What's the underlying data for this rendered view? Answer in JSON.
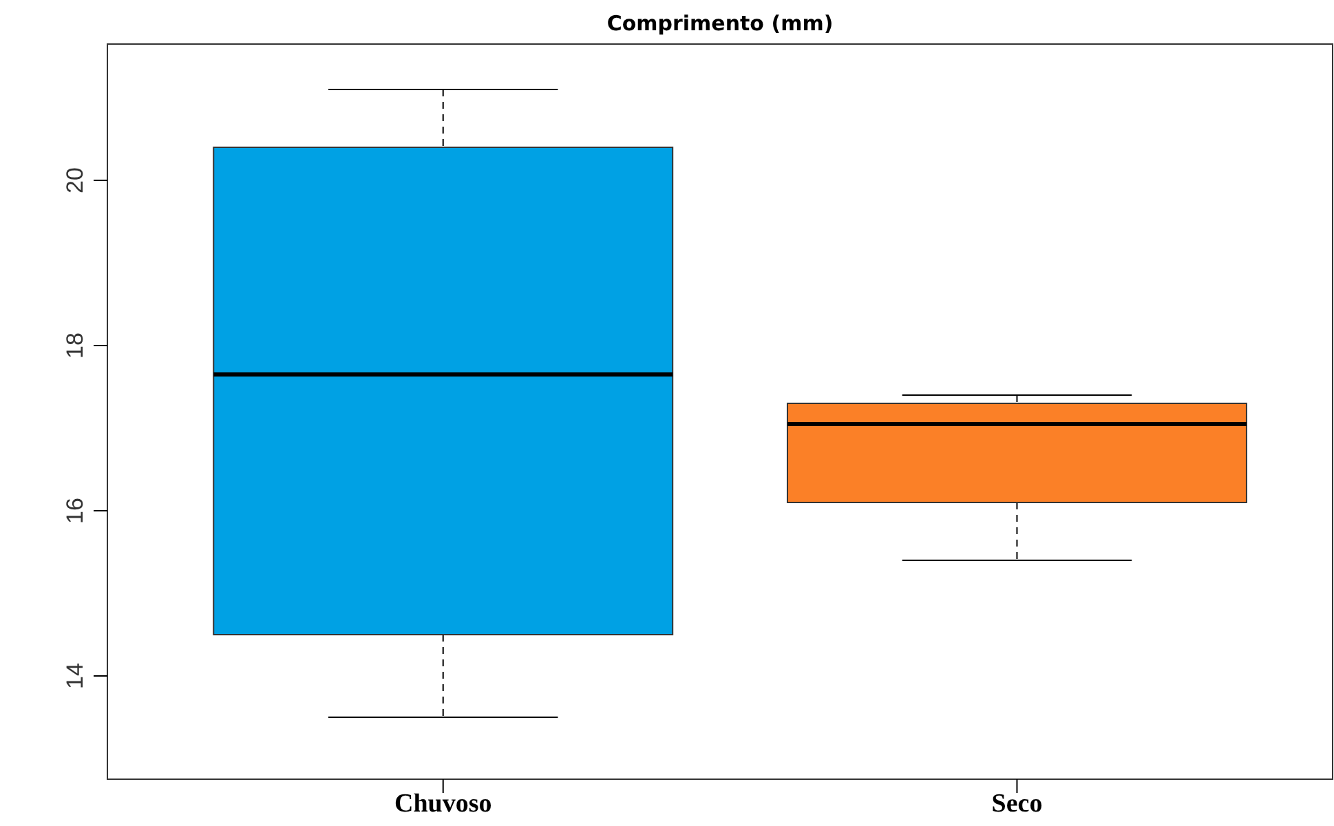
{
  "chart_data": {
    "type": "box",
    "title": "Comprimento (mm)",
    "categories": [
      "Chuvoso",
      "Seco"
    ],
    "colors": [
      "#00a1e4",
      "#fb8027"
    ],
    "boxes": [
      {
        "low": 13.5,
        "q1": 14.5,
        "median": 17.65,
        "q3": 20.4,
        "high": 21.1
      },
      {
        "low": 15.4,
        "q1": 16.1,
        "median": 17.05,
        "q3": 17.3,
        "high": 17.4
      }
    ],
    "ylim": [
      12.75,
      21.65
    ],
    "yticks": [
      14,
      16,
      18,
      20
    ]
  }
}
